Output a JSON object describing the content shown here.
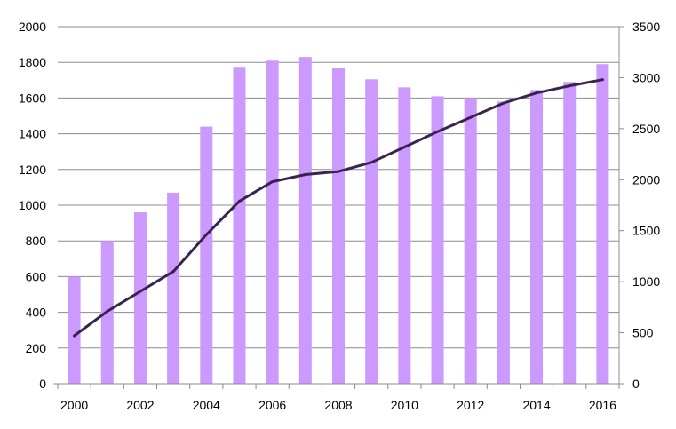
{
  "chart_data": {
    "type": "bar",
    "title": "",
    "xlabel": "",
    "ylabel": "",
    "categories": [
      "2000",
      "2001",
      "2002",
      "2003",
      "2004",
      "2005",
      "2006",
      "2007",
      "2008",
      "2009",
      "2010",
      "2011",
      "2012",
      "2013",
      "2014",
      "2015",
      "2016"
    ],
    "x_tick_labels": [
      "2000",
      "2002",
      "2004",
      "2006",
      "2008",
      "2010",
      "2012",
      "2014",
      "2016"
    ],
    "ylim": [
      0,
      2000
    ],
    "y_ticks": [
      0,
      200,
      400,
      600,
      800,
      1000,
      1200,
      1400,
      1600,
      1800,
      2000
    ],
    "y2lim": [
      0,
      3500
    ],
    "y2_ticks": [
      0,
      500,
      1000,
      1500,
      2000,
      2500,
      3000,
      3500
    ],
    "grid": true,
    "series": [
      {
        "name": "bars",
        "type": "bar",
        "axis": "left",
        "color": "#cc99ff",
        "values": [
          600,
          800,
          960,
          1070,
          1440,
          1775,
          1810,
          1830,
          1770,
          1705,
          1660,
          1610,
          1600,
          1580,
          1645,
          1690,
          1790
        ]
      },
      {
        "name": "line",
        "type": "line",
        "axis": "right",
        "color": "#3b2350",
        "values": [
          470,
          710,
          905,
          1100,
          1460,
          1790,
          1980,
          2050,
          2080,
          2170,
          2320,
          2470,
          2610,
          2750,
          2850,
          2920,
          2980
        ]
      }
    ]
  }
}
